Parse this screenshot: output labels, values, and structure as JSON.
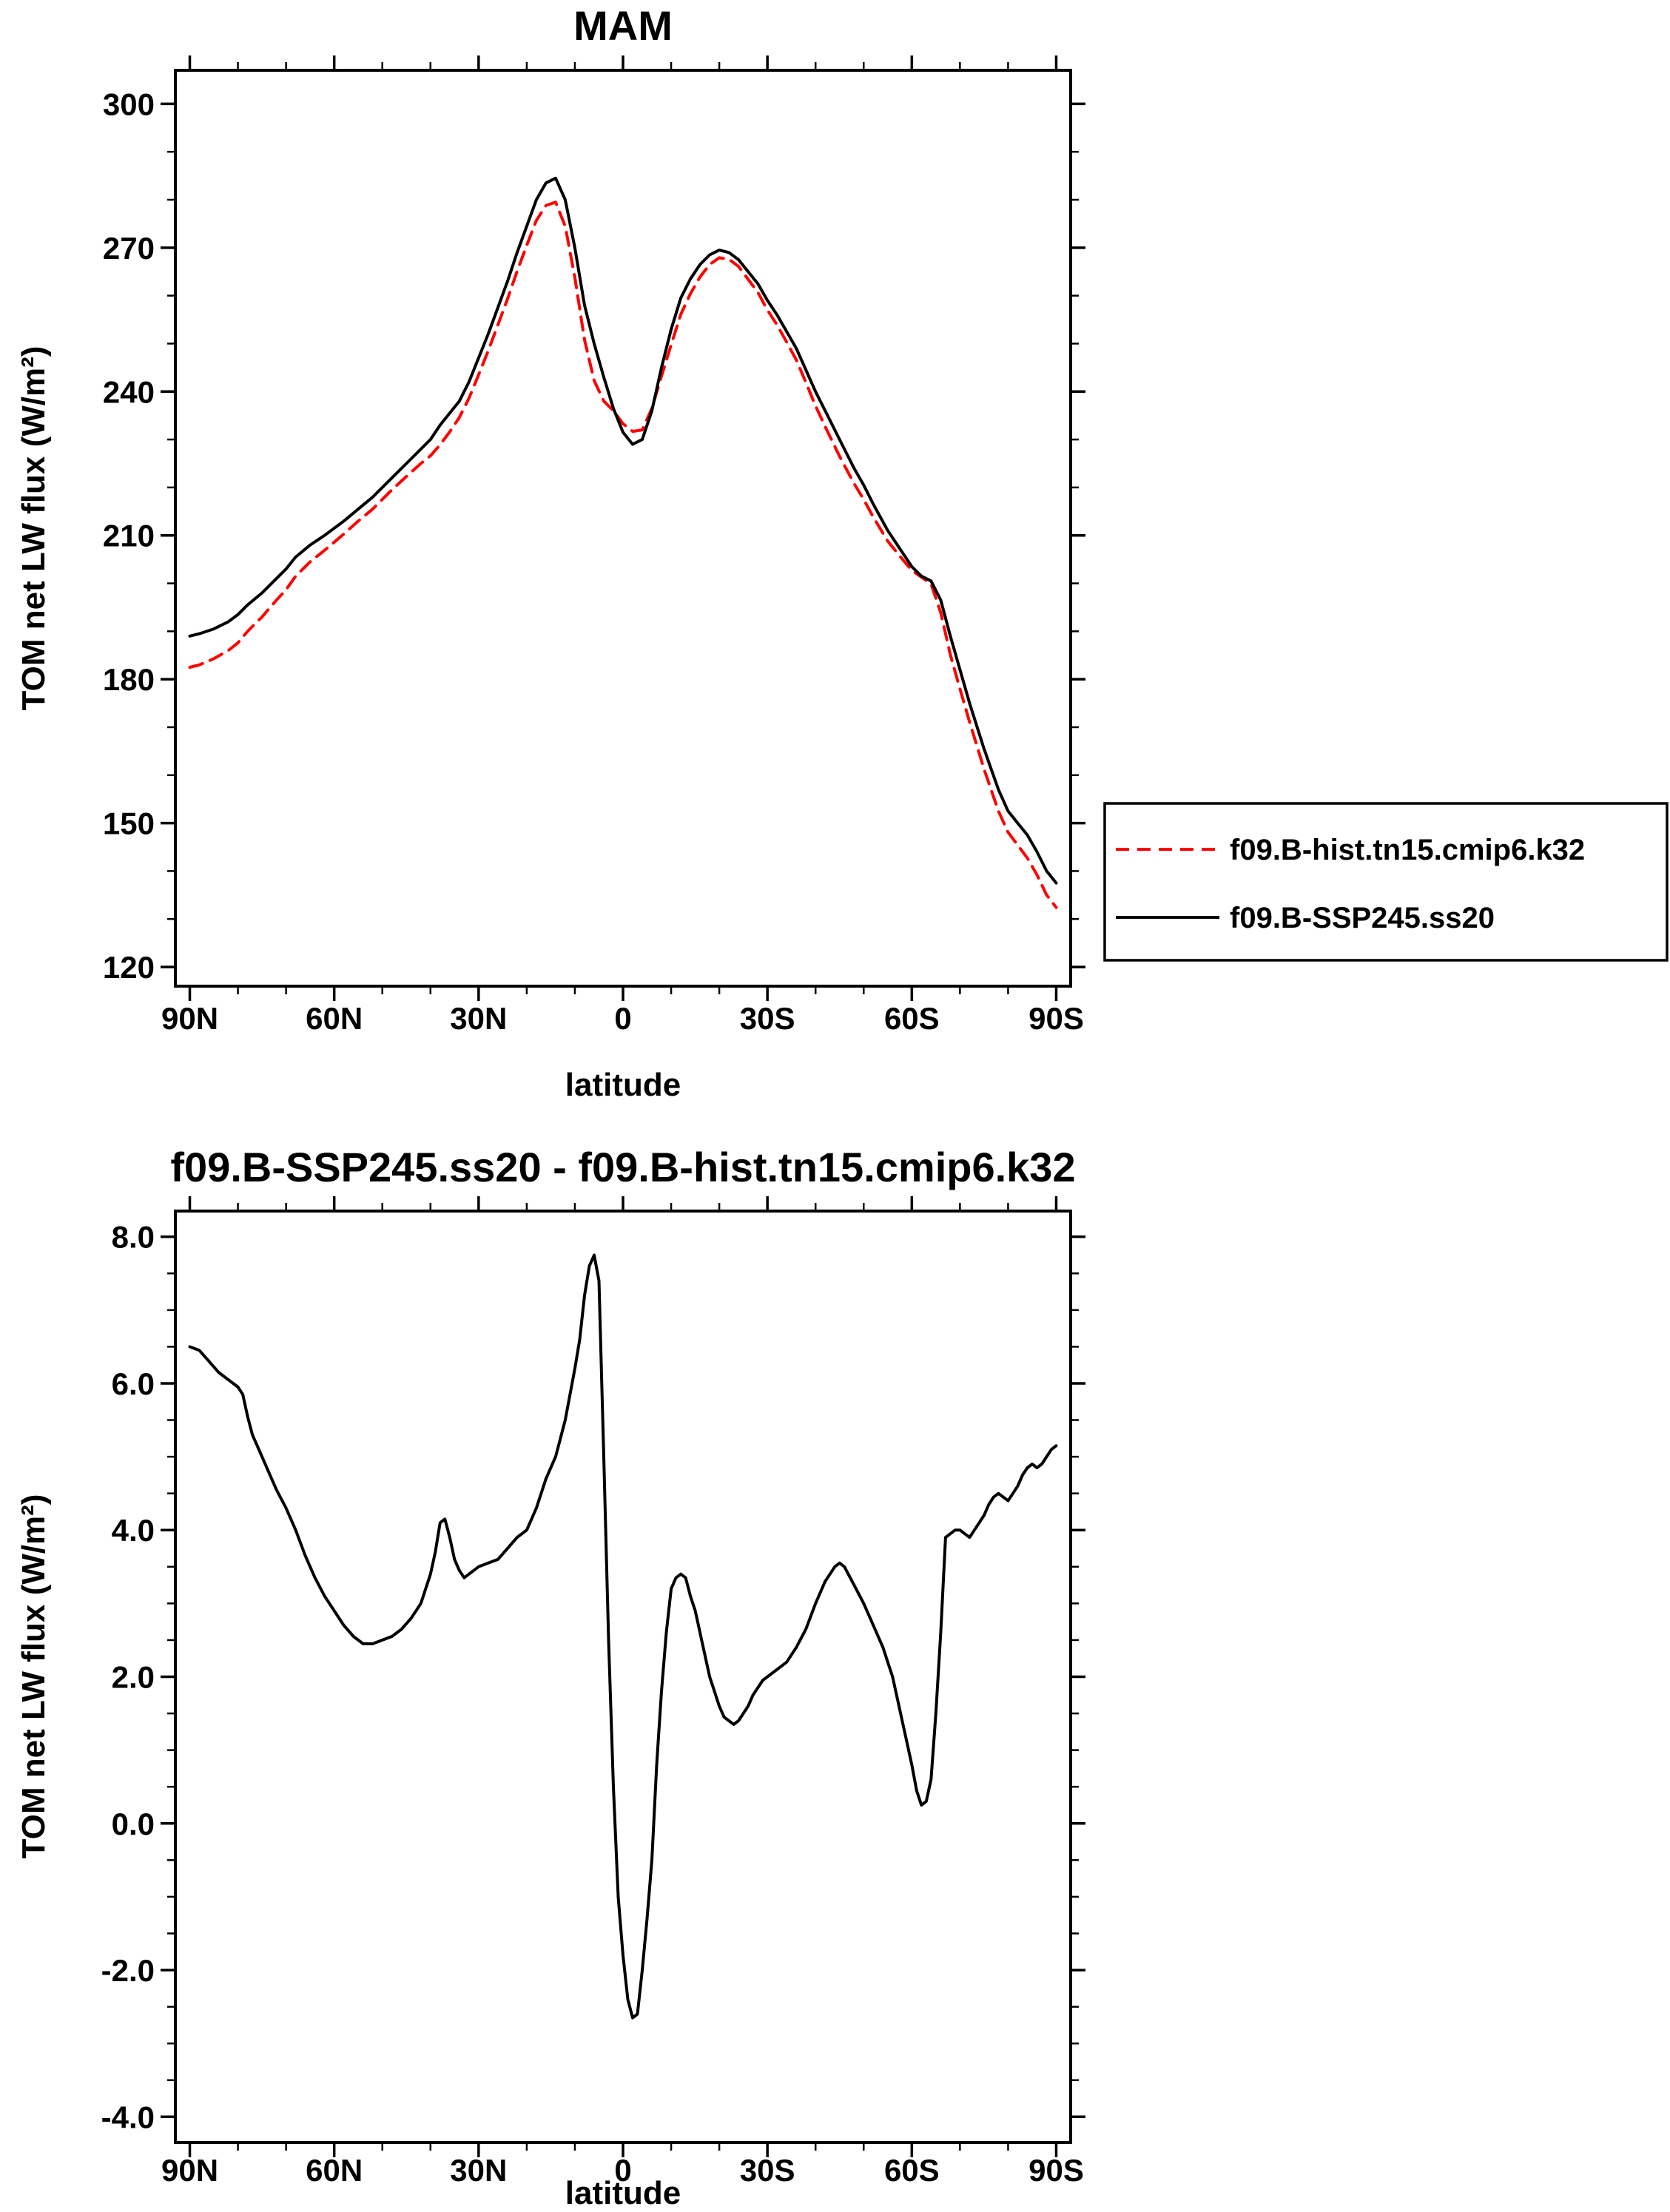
{
  "figure": {
    "background": "#ffffff",
    "text_color": "#000000",
    "accent_red": "#ff0000"
  },
  "chart_data": [
    {
      "id": "mam",
      "type": "line",
      "title": "MAM",
      "xlabel": "latitude",
      "ylabel": "TOM net LW flux (W/m²)",
      "grid": false,
      "x_axis": {
        "ticks": [
          90,
          60,
          30,
          0,
          -30,
          -60,
          -90
        ],
        "tick_labels": [
          "90N",
          "60N",
          "30N",
          "0",
          "30S",
          "60S",
          "90S"
        ],
        "range": [
          90,
          -90
        ],
        "minor_step": 10
      },
      "y_axis": {
        "ticks": [
          300,
          270,
          240,
          210,
          180,
          150,
          120
        ],
        "tick_labels": [
          "300",
          "270",
          "240",
          "210",
          "180",
          "150",
          "120"
        ],
        "range": [
          120,
          300
        ],
        "minor_step": 10
      },
      "legend": {
        "visible": true,
        "position": "outside-right-bottom",
        "border": true
      },
      "x": [
        90,
        88,
        85,
        82,
        80,
        78,
        75,
        72,
        70,
        68,
        65,
        62,
        60,
        58,
        55,
        52,
        50,
        48,
        45,
        42,
        40,
        38,
        36,
        34,
        32,
        30,
        28,
        26,
        24,
        22,
        20,
        18,
        16,
        14,
        12,
        10,
        8,
        6,
        4,
        2,
        0,
        -2,
        -4,
        -6,
        -8,
        -10,
        -12,
        -14,
        -16,
        -18,
        -20,
        -22,
        -24,
        -26,
        -28,
        -30,
        -32,
        -34,
        -36,
        -38,
        -40,
        -42,
        -45,
        -48,
        -50,
        -52,
        -55,
        -58,
        -60,
        -62,
        -64,
        -66,
        -68,
        -70,
        -72,
        -75,
        -78,
        -80,
        -82,
        -84,
        -86,
        -88,
        -90
      ],
      "series": [
        {
          "name": "f09.B-hist.tn15.cmip6.k32",
          "color": "#ff0000",
          "style": "dashed",
          "values": [
            182.5,
            183,
            184.3,
            186,
            187.6,
            190,
            193,
            196.5,
            198.7,
            201.5,
            204.5,
            206.9,
            208.6,
            210.3,
            213,
            215.5,
            217.5,
            219.5,
            222.3,
            225,
            226.6,
            228.9,
            231.6,
            234.6,
            238.6,
            243.5,
            248.5,
            253.9,
            259.3,
            265.1,
            270.5,
            275.7,
            278.8,
            279.5,
            274.5,
            263.8,
            250.8,
            242.3,
            238,
            236,
            233.3,
            231.7,
            232,
            236.5,
            243.2,
            249.8,
            256.1,
            260.4,
            263.9,
            266.5,
            267.9,
            267.6,
            266.1,
            263.4,
            260.7,
            257,
            253.9,
            250.3,
            246.6,
            241.9,
            237,
            232.7,
            226.5,
            220.8,
            217.5,
            213.8,
            208.8,
            205.1,
            202.7,
            201.3,
            199.9,
            193.9,
            185.1,
            178,
            171.1,
            161.3,
            152.5,
            148.1,
            145.4,
            142.7,
            139.2,
            135,
            132.4
          ]
        },
        {
          "name": "f09.B-SSP245.ss20",
          "color": "#000000",
          "style": "solid",
          "values": [
            189,
            189.5,
            190.5,
            192,
            193.5,
            195.5,
            198,
            201,
            203,
            205.5,
            208,
            210,
            211.5,
            213,
            215.5,
            218,
            220,
            222,
            225,
            228,
            230,
            233,
            235.5,
            238,
            242,
            247,
            252,
            257.5,
            263,
            269,
            274.5,
            280,
            283.5,
            284.5,
            280,
            270,
            258,
            250,
            243,
            236.5,
            231.5,
            229,
            230,
            236,
            245,
            253,
            259.5,
            263.5,
            266.5,
            268.5,
            269.5,
            269,
            267.5,
            265,
            262.5,
            259,
            256,
            252.5,
            249,
            244.5,
            240,
            236,
            230,
            224,
            220.5,
            216.5,
            211,
            206.5,
            203.5,
            201.5,
            200.5,
            196.5,
            189,
            182,
            175,
            165.5,
            157,
            152.5,
            150,
            147.5,
            144,
            140,
            137.5
          ]
        }
      ]
    },
    {
      "id": "diff",
      "type": "line",
      "title": "f09.B-SSP245.ss20 - f09.B-hist.tn15.cmip6.k32",
      "xlabel": "latitude",
      "ylabel": "TOM net LW flux (W/m²)",
      "grid": false,
      "x_axis": {
        "ticks": [
          90,
          60,
          30,
          0,
          -30,
          -60,
          -90
        ],
        "tick_labels": [
          "90N",
          "60N",
          "30N",
          "0",
          "30S",
          "60S",
          "90S"
        ],
        "range": [
          90,
          -90
        ],
        "minor_step": 10
      },
      "y_axis": {
        "ticks": [
          8,
          6,
          4,
          2,
          0,
          -2,
          -4
        ],
        "tick_labels": [
          "8.0",
          "6.0",
          "4.0",
          "2.0",
          "0.0",
          "-2.0",
          "-4.0"
        ],
        "range": [
          -4,
          8
        ],
        "minor_step": 0.5
      },
      "legend": {
        "visible": false
      },
      "x": [
        90,
        88,
        86,
        84,
        82,
        80,
        79,
        78,
        77,
        76,
        75,
        74,
        72,
        70,
        68,
        66,
        64,
        62,
        60,
        58,
        56,
        54,
        52,
        50,
        48,
        46,
        44,
        42,
        40,
        39,
        38,
        37,
        36,
        35,
        34,
        33,
        32,
        31,
        30,
        28,
        26,
        24,
        22,
        20,
        18,
        16,
        14,
        12,
        10,
        9,
        8,
        7,
        6,
        5,
        4,
        3,
        2,
        1,
        0,
        -1,
        -2,
        -3,
        -4,
        -5,
        -6,
        -7,
        -8,
        -9,
        -10,
        -11,
        -12,
        -13,
        -14,
        -15,
        -16,
        -17,
        -18,
        -19,
        -20,
        -21,
        -22,
        -23,
        -24,
        -25,
        -26,
        -27,
        -28,
        -29,
        -30,
        -32,
        -34,
        -36,
        -38,
        -40,
        -42,
        -44,
        -45,
        -46,
        -48,
        -50,
        -52,
        -54,
        -55,
        -56,
        -57,
        -58,
        -59,
        -60,
        -61,
        -62,
        -63,
        -64,
        -65,
        -66,
        -67,
        -68,
        -69,
        -70,
        -71,
        -72,
        -73,
        -74,
        -75,
        -76,
        -77,
        -78,
        -79,
        -80,
        -81,
        -82,
        -83,
        -84,
        -85,
        -86,
        -87,
        -88,
        -89,
        -90
      ],
      "series": [
        {
          "name": "f09.B-SSP245.ss20 minus f09.B-hist.tn15.cmip6.k32",
          "color": "#000000",
          "style": "solid",
          "values": [
            6.5,
            6.45,
            6.3,
            6.15,
            6.05,
            5.95,
            5.85,
            5.55,
            5.3,
            5.15,
            5.0,
            4.85,
            4.55,
            4.3,
            4.0,
            3.65,
            3.35,
            3.1,
            2.9,
            2.7,
            2.55,
            2.45,
            2.45,
            2.5,
            2.55,
            2.65,
            2.8,
            3.0,
            3.4,
            3.7,
            4.1,
            4.15,
            3.9,
            3.6,
            3.45,
            3.35,
            3.4,
            3.45,
            3.5,
            3.55,
            3.6,
            3.75,
            3.9,
            4.0,
            4.3,
            4.7,
            5.0,
            5.5,
            6.2,
            6.6,
            7.2,
            7.6,
            7.75,
            7.4,
            5.0,
            2.5,
            0.5,
            -1.0,
            -1.8,
            -2.4,
            -2.65,
            -2.6,
            -2.0,
            -1.3,
            -0.5,
            0.8,
            1.8,
            2.6,
            3.2,
            3.35,
            3.4,
            3.35,
            3.1,
            2.9,
            2.6,
            2.3,
            2.0,
            1.8,
            1.6,
            1.45,
            1.4,
            1.35,
            1.4,
            1.5,
            1.6,
            1.75,
            1.85,
            1.95,
            2.0,
            2.1,
            2.2,
            2.4,
            2.65,
            3.0,
            3.3,
            3.5,
            3.55,
            3.5,
            3.25,
            3.0,
            2.7,
            2.4,
            2.2,
            2.0,
            1.7,
            1.4,
            1.1,
            0.8,
            0.45,
            0.25,
            0.3,
            0.6,
            1.5,
            2.6,
            3.9,
            3.95,
            4.0,
            4.0,
            3.95,
            3.9,
            4.0,
            4.1,
            4.2,
            4.35,
            4.45,
            4.5,
            4.45,
            4.4,
            4.5,
            4.6,
            4.75,
            4.85,
            4.9,
            4.85,
            4.9,
            5.0,
            5.1,
            5.15
          ]
        }
      ]
    }
  ]
}
